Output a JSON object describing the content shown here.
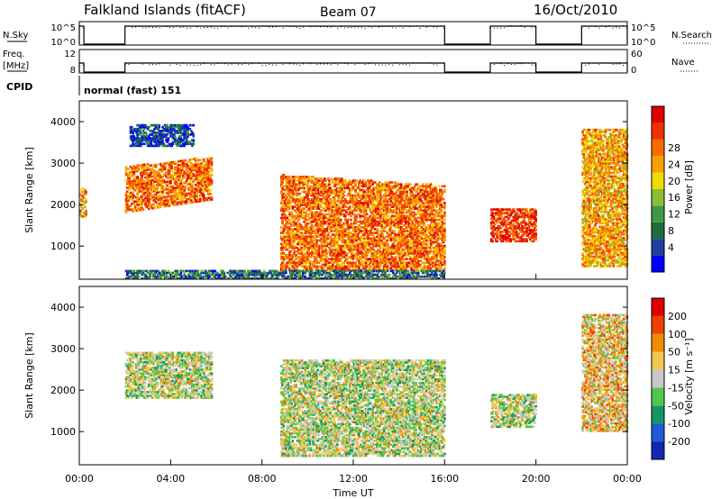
{
  "header": {
    "station": "Falkland Islands (fitACF)",
    "beam": "Beam 07",
    "date": "16/Oct/2010"
  },
  "side_labels": {
    "nsky": "N.Sky",
    "freq_line1": "Freq.",
    "freq_line2": "[MHz]",
    "cpid": "CPID",
    "nsearch": "N.Search",
    "nave": "Nave"
  },
  "cpid_text": "normal (fast) 151",
  "nsky_ticks": [
    "10^5",
    "10^0"
  ],
  "nsearch_ticks": [
    "10^5",
    "10^0"
  ],
  "freq_ticks": [
    "12",
    "8"
  ],
  "nave_ticks": [
    "60",
    "0"
  ],
  "chart_data": [
    {
      "type": "line",
      "name": "noise-and-frequency",
      "x_unit": "hours UT",
      "active_intervals_hours": [
        [
          0.0,
          0.2
        ],
        [
          2.0,
          16.0
        ],
        [
          18.0,
          20.0
        ],
        [
          22.0,
          24.0
        ]
      ]
    },
    {
      "type": "heatmap",
      "name": "power",
      "ylabel": "Slant Range [km]",
      "xlabel": "Time UT",
      "colorbar_label": "Power [dB]",
      "colorbar_ticks": [
        "4",
        "8",
        "12",
        "16",
        "20",
        "24",
        "28"
      ],
      "colorbar_colors": [
        "#0000ff",
        "#1f3fa0",
        "#1e6e3c",
        "#3c9a46",
        "#8cbe32",
        "#f0dc00",
        "#f8a000",
        "#f86a00",
        "#f03000",
        "#e00000"
      ],
      "ylim": [
        200,
        4500
      ],
      "xlim": [
        0,
        24
      ],
      "yticks": [
        1000,
        2000,
        3000,
        4000
      ],
      "regions": [
        {
          "t0": 0.0,
          "t1": 0.3,
          "r0": 1700,
          "r1": 2400,
          "level": 6
        },
        {
          "t0": 2.0,
          "t1": 5.8,
          "r0": 1800,
          "r1": 2900,
          "level": 7,
          "slope": 260
        },
        {
          "t0": 2.2,
          "t1": 5.0,
          "r0": 3400,
          "r1": 3900,
          "level": 1
        },
        {
          "t0": 8.8,
          "t1": 16.0,
          "r0": 400,
          "r1": 2700,
          "level": 7,
          "slope": -280
        },
        {
          "t0": 18.0,
          "t1": 20.0,
          "r0": 1100,
          "r1": 1900,
          "level": 8
        },
        {
          "t0": 22.0,
          "t1": 24.0,
          "r0": 500,
          "r1": 3800,
          "level": 6
        },
        {
          "t0": 2.0,
          "t1": 16.0,
          "r0": 200,
          "r1": 400,
          "level": 2
        }
      ]
    },
    {
      "type": "heatmap",
      "name": "velocity",
      "ylabel": "Slant Range [km]",
      "xlabel": "Time UT",
      "colorbar_label": "Velocity [m s⁻¹]",
      "colorbar_ticks": [
        "200",
        "100",
        "50",
        "15",
        "-15",
        "-50",
        "-100",
        "-200"
      ],
      "colorbar_colors": [
        "#1428b4",
        "#1e5ad2",
        "#149664",
        "#50c850",
        "#c8c8c8",
        "#f0c850",
        "#f08c00",
        "#f04000",
        "#e00000"
      ],
      "ylim": [
        200,
        4500
      ],
      "xlim": [
        0,
        24
      ],
      "yticks": [
        1000,
        2000,
        3000,
        4000
      ],
      "xticks": [
        "00:00",
        "04:00",
        "08:00",
        "12:00",
        "16:00",
        "20:00",
        "00:00"
      ],
      "regions": [
        {
          "t0": 2.0,
          "t1": 5.8,
          "r0": 1800,
          "r1": 2900,
          "level": 4
        },
        {
          "t0": 8.8,
          "t1": 16.0,
          "r0": 400,
          "r1": 2700,
          "level": 4
        },
        {
          "t0": 18.0,
          "t1": 20.0,
          "r0": 1100,
          "r1": 1900,
          "level": 4
        },
        {
          "t0": 22.0,
          "t1": 24.0,
          "r0": 1000,
          "r1": 3800,
          "level": 5
        }
      ]
    }
  ]
}
